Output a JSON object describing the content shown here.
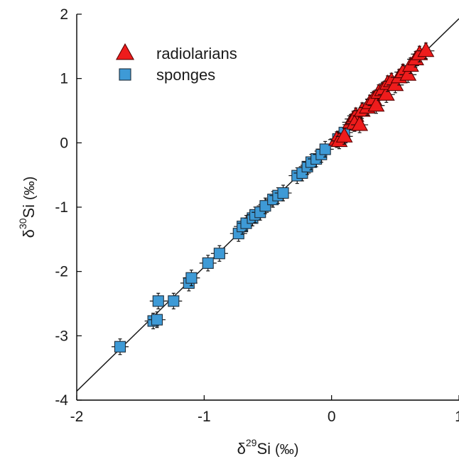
{
  "chart_data": {
    "type": "scatter",
    "title": "",
    "xlabel": {
      "delta": "δ",
      "sup": "29",
      "element": "Si",
      "unit": "(‰)"
    },
    "ylabel": {
      "delta": "δ",
      "sup": "30",
      "element": "Si",
      "unit": "(‰)"
    },
    "xlim": [
      -2,
      1
    ],
    "ylim": [
      -4,
      2
    ],
    "xticks": [
      -2,
      -1,
      0,
      1
    ],
    "xtick_labels": [
      "-2",
      "-1",
      "0",
      "1"
    ],
    "yticks": [
      -4,
      -3,
      -2,
      -1,
      0,
      1,
      2
    ],
    "ytick_labels": [
      "-4",
      "-3",
      "-2",
      "-1",
      "0",
      "1",
      "2"
    ],
    "grid": false,
    "legend_position": "top-left",
    "reference_line": {
      "slope": 1.93,
      "intercept": 0.0
    },
    "series": [
      {
        "name": "radiolarians",
        "marker": "triangle",
        "color": "#ee1c1c",
        "edge_color": "#5a0000",
        "points": [
          [
            0.04,
            0.05
          ],
          [
            0.06,
            0.03
          ],
          [
            0.1,
            0.1
          ],
          [
            0.15,
            0.32
          ],
          [
            0.17,
            0.37
          ],
          [
            0.19,
            0.42
          ],
          [
            0.18,
            0.3
          ],
          [
            0.22,
            0.28
          ],
          [
            0.24,
            0.5
          ],
          [
            0.28,
            0.55
          ],
          [
            0.3,
            0.62
          ],
          [
            0.33,
            0.68
          ],
          [
            0.35,
            0.58
          ],
          [
            0.37,
            0.78
          ],
          [
            0.4,
            0.82
          ],
          [
            0.43,
            0.75
          ],
          [
            0.44,
            0.92
          ],
          [
            0.47,
            0.96
          ],
          [
            0.5,
            0.9
          ],
          [
            0.53,
            1.02
          ],
          [
            0.56,
            1.1
          ],
          [
            0.6,
            1.06
          ],
          [
            0.62,
            1.2
          ],
          [
            0.66,
            1.3
          ],
          [
            0.69,
            1.38
          ],
          [
            0.74,
            1.43
          ]
        ]
      },
      {
        "name": "sponges",
        "marker": "square",
        "color": "#3e9ad6",
        "edge_color": "#1f2d3a",
        "points": [
          [
            -1.66,
            -3.17
          ],
          [
            -1.4,
            -2.77
          ],
          [
            -1.37,
            -2.75
          ],
          [
            -1.36,
            -2.46
          ],
          [
            -1.24,
            -2.46
          ],
          [
            -1.12,
            -2.18
          ],
          [
            -1.1,
            -2.1
          ],
          [
            -0.97,
            -1.87
          ],
          [
            -0.88,
            -1.72
          ],
          [
            -0.73,
            -1.41
          ],
          [
            -0.7,
            -1.3
          ],
          [
            -0.67,
            -1.25
          ],
          [
            -0.62,
            -1.17
          ],
          [
            -0.6,
            -1.12
          ],
          [
            -0.56,
            -1.08
          ],
          [
            -0.52,
            -0.98
          ],
          [
            -0.46,
            -0.88
          ],
          [
            -0.42,
            -0.82
          ],
          [
            -0.38,
            -0.78
          ],
          [
            -0.27,
            -0.51
          ],
          [
            -0.23,
            -0.47
          ],
          [
            -0.19,
            -0.37
          ],
          [
            -0.16,
            -0.3
          ],
          [
            -0.12,
            -0.25
          ],
          [
            -0.08,
            -0.18
          ],
          [
            -0.05,
            -0.1
          ],
          [
            0.05,
            0.06
          ],
          [
            0.08,
            0.08
          ],
          [
            0.1,
            0.16
          ]
        ]
      }
    ]
  }
}
